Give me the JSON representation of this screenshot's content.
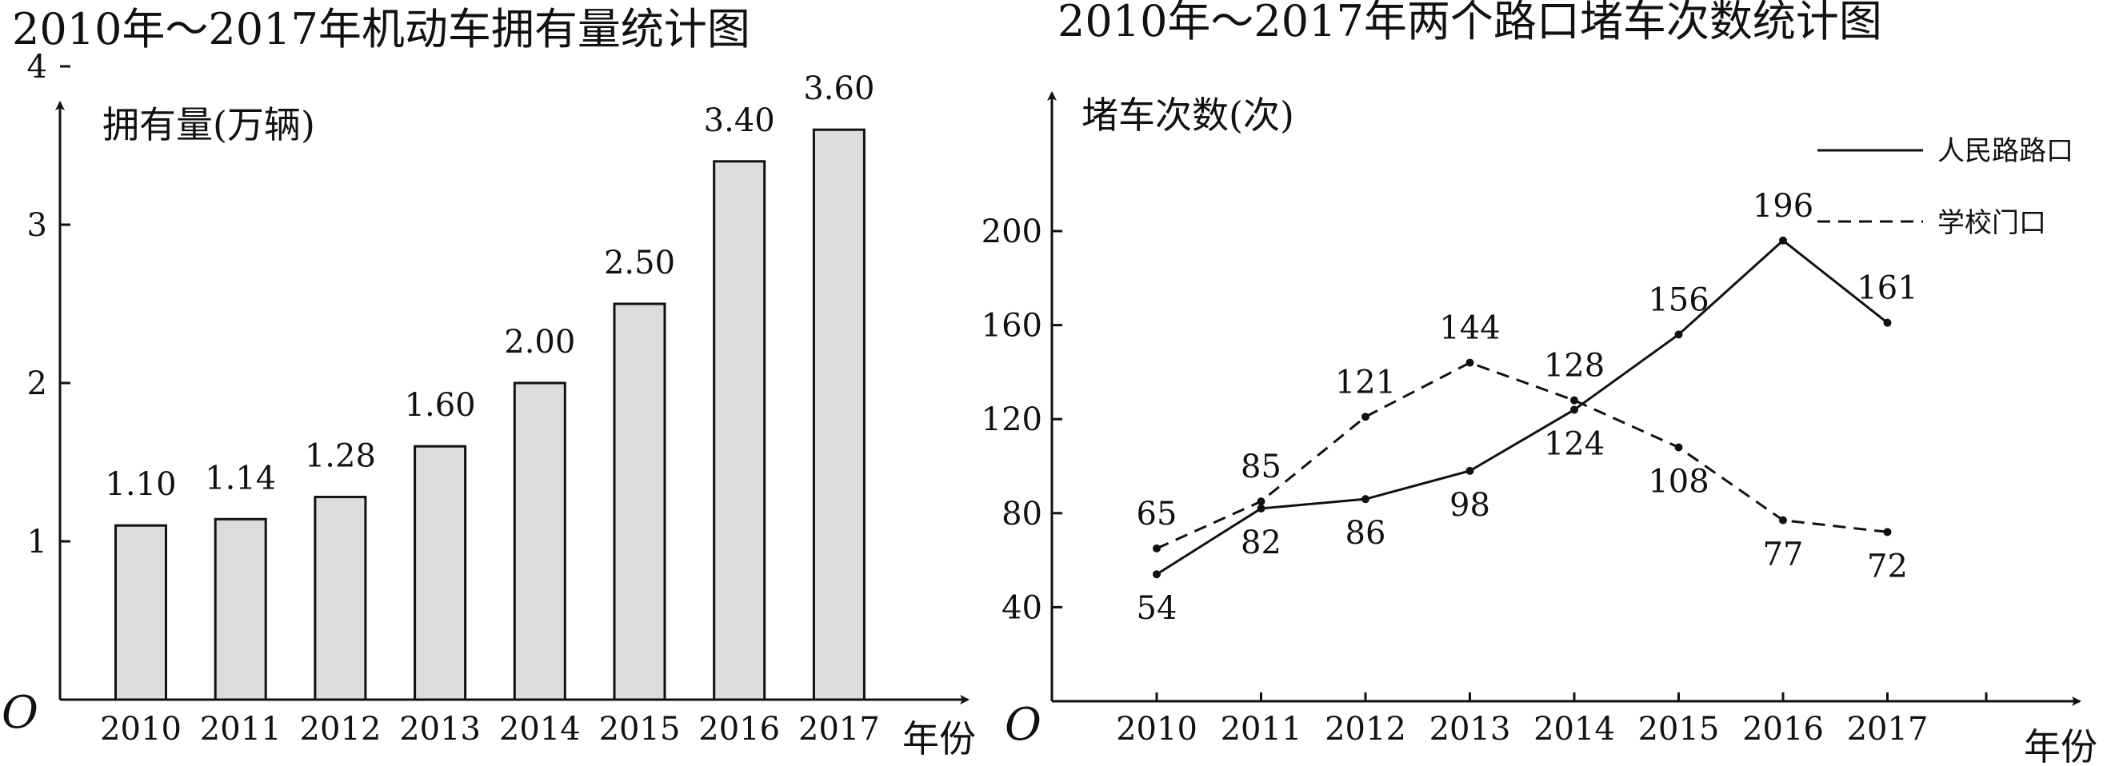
{
  "chart_data": [
    {
      "type": "bar",
      "title": "2010年～2017年机动车拥有量统计图",
      "ylabel": "拥有量(万辆)",
      "xlabel": "年份",
      "origin_label": "O",
      "categories": [
        "2010",
        "2011",
        "2012",
        "2013",
        "2014",
        "2015",
        "2016",
        "2017"
      ],
      "values": [
        1.1,
        1.14,
        1.28,
        1.6,
        2.0,
        2.5,
        3.4,
        3.6
      ],
      "value_labels": [
        "1.10",
        "1.14",
        "1.28",
        "1.60",
        "2.00",
        "2.50",
        "3.40",
        "3.60"
      ],
      "yticks": [
        1,
        2,
        3,
        4
      ],
      "ylim": [
        0,
        4.7
      ],
      "bar_fill": "#dcdcdc",
      "stroke": "#111111"
    },
    {
      "type": "line",
      "title": "2010年～2017年两个路口堵车次数统计图",
      "ylabel": "堵车次数(次)",
      "xlabel": "年份",
      "origin_label": "O",
      "categories": [
        "2010",
        "2011",
        "2012",
        "2013",
        "2014",
        "2015",
        "2016",
        "2017"
      ],
      "yticks": [
        40,
        80,
        120,
        160,
        200
      ],
      "ylim": [
        0,
        245
      ],
      "series": [
        {
          "name": "人民路路口",
          "style": "solid",
          "values": [
            54,
            82,
            86,
            98,
            124,
            156,
            196,
            161
          ],
          "labels": [
            "54",
            "82",
            "86",
            "98",
            "124",
            "156",
            "196",
            "161"
          ]
        },
        {
          "name": "学校门口",
          "style": "dashed",
          "values": [
            65,
            85,
            121,
            144,
            128,
            108,
            77,
            72
          ],
          "labels": [
            "65",
            "85",
            "121",
            "144",
            "128",
            "108",
            "77",
            "72"
          ]
        }
      ],
      "legend_position": "top-right",
      "stroke": "#111111"
    }
  ]
}
